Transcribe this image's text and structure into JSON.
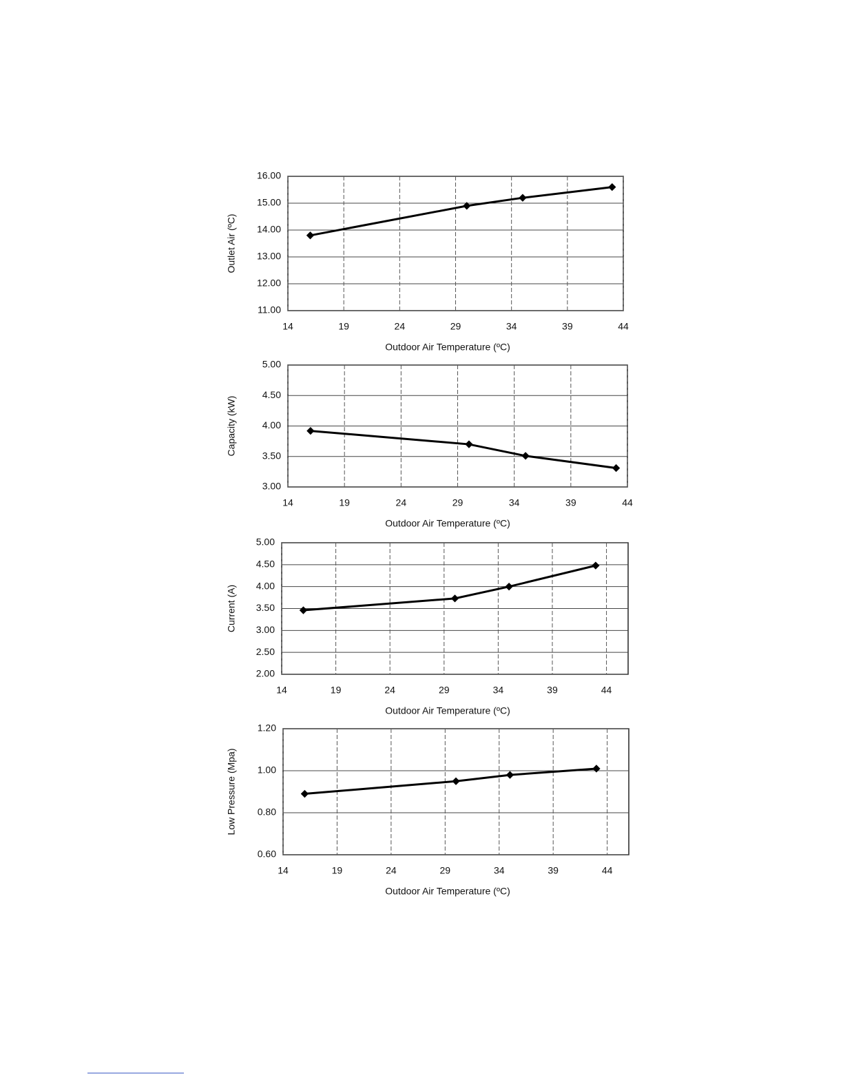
{
  "chart_data": [
    {
      "type": "line",
      "x_label": "Outdoor Air Temperature (ºC)",
      "y_label": "Outlet Air (ºC)",
      "x": [
        16,
        30,
        35,
        43
      ],
      "values": [
        13.8,
        14.9,
        15.2,
        15.6
      ],
      "color": "#000000",
      "xlim": [
        14,
        44
      ],
      "xticks": [
        14,
        19,
        24,
        29,
        34,
        39,
        44
      ],
      "ylim": [
        11,
        16
      ],
      "yticks": [
        {
          "value": 11,
          "label": "11.00"
        },
        {
          "value": 12,
          "label": "12.00"
        },
        {
          "value": 13,
          "label": "13.00"
        },
        {
          "value": 14,
          "label": "14.00"
        },
        {
          "value": 15,
          "label": "15.00"
        },
        {
          "value": 16,
          "label": "16.00"
        }
      ],
      "grid": true
    },
    {
      "type": "line",
      "x_label": "Outdoor Air Temperature (ºC)",
      "y_label": "Capacity (kW)",
      "x": [
        16,
        30,
        35,
        43
      ],
      "values": [
        3.92,
        3.7,
        3.51,
        3.31
      ],
      "color": "#000000",
      "xlim": [
        14,
        44
      ],
      "xticks": [
        14,
        19,
        24,
        29,
        34,
        39,
        44
      ],
      "ylim": [
        3,
        5
      ],
      "yticks": [
        {
          "value": 3,
          "label": "3.00"
        },
        {
          "value": 3.5,
          "label": "3.50"
        },
        {
          "value": 4,
          "label": "4.00"
        },
        {
          "value": 4.5,
          "label": "4.50"
        },
        {
          "value": 5,
          "label": "5.00"
        }
      ],
      "grid": true
    },
    {
      "type": "line",
      "x_label": "Outdoor Air Temperature (ºC)",
      "y_label": "Current (A)",
      "x": [
        16,
        30,
        35,
        43
      ],
      "values": [
        3.46,
        3.73,
        4.0,
        4.48
      ],
      "color": "#000000",
      "xlim": [
        14,
        46
      ],
      "xticks": [
        14,
        19,
        24,
        29,
        34,
        39,
        44
      ],
      "ylim": [
        2,
        5
      ],
      "yticks": [
        {
          "value": 2,
          "label": "2.00"
        },
        {
          "value": 2.5,
          "label": "2.50"
        },
        {
          "value": 3,
          "label": "3.00"
        },
        {
          "value": 3.5,
          "label": "3.50"
        },
        {
          "value": 4,
          "label": "4.00"
        },
        {
          "value": 4.5,
          "label": "4.50"
        },
        {
          "value": 5,
          "label": "5.00"
        }
      ],
      "grid": true
    },
    {
      "type": "line",
      "x_label": "Outdoor Air Temperature (ºC)",
      "y_label": "Low Pressure (Mpa)",
      "x": [
        16,
        30,
        35,
        43
      ],
      "values": [
        0.89,
        0.95,
        0.98,
        1.01
      ],
      "color": "#000000",
      "xlim": [
        14,
        46
      ],
      "xticks": [
        14,
        19,
        24,
        29,
        34,
        39,
        44
      ],
      "ylim": [
        0.6,
        1.2
      ],
      "yticks": [
        {
          "value": 0.6,
          "label": "0.60"
        },
        {
          "value": 0.8,
          "label": "0.80"
        },
        {
          "value": 1.0,
          "label": "1.00"
        },
        {
          "value": 1.2,
          "label": "1.20"
        }
      ],
      "grid": true
    }
  ]
}
